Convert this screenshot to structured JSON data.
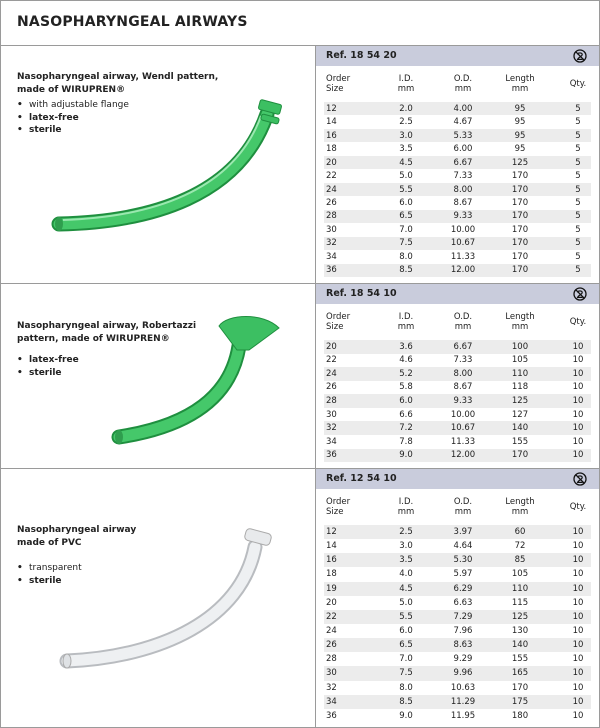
{
  "title": "NASOPHARYNGEAL AIRWAYS",
  "sections": [
    {
      "description": [
        "Nasopharyngeal airway, Wendl pattern,",
        "made of WIRUPREN®"
      ],
      "features": [
        {
          "text": "with adjustable flange",
          "bold": false
        },
        {
          "text": "latex-free",
          "bold": true
        },
        {
          "text": "sterile",
          "bold": true
        }
      ],
      "ref": "Ref. 18 54 20",
      "columns": [
        [
          "Order",
          "Size"
        ],
        [
          "I.D.",
          "mm"
        ],
        [
          "O.D.",
          "mm"
        ],
        [
          "Length",
          "mm"
        ],
        [
          "Qty."
        ]
      ],
      "rows": [
        [
          "12",
          "2.0",
          "4.00",
          "95",
          "5"
        ],
        [
          "14",
          "2.5",
          "4.67",
          "95",
          "5"
        ],
        [
          "16",
          "3.0",
          "5.33",
          "95",
          "5"
        ],
        [
          "18",
          "3.5",
          "6.00",
          "95",
          "5"
        ],
        [
          "20",
          "4.5",
          "6.67",
          "125",
          "5"
        ],
        [
          "22",
          "5.0",
          "7.33",
          "170",
          "5"
        ],
        [
          "24",
          "5.5",
          "8.00",
          "170",
          "5"
        ],
        [
          "26",
          "6.0",
          "8.67",
          "170",
          "5"
        ],
        [
          "28",
          "6.5",
          "9.33",
          "170",
          "5"
        ],
        [
          "30",
          "7.0",
          "10.00",
          "170",
          "5"
        ],
        [
          "32",
          "7.5",
          "10.67",
          "170",
          "5"
        ],
        [
          "34",
          "8.0",
          "11.33",
          "170",
          "5"
        ],
        [
          "36",
          "8.5",
          "12.00",
          "170",
          "5"
        ]
      ]
    },
    {
      "description": [
        "Nasopharyngeal airway, Robertazzi",
        "pattern, made of WIRUPREN®"
      ],
      "features": [
        {
          "text": "latex-free",
          "bold": true
        },
        {
          "text": "sterile",
          "bold": true
        }
      ],
      "ref": "Ref. 18 54 10",
      "columns": [
        [
          "Order",
          "Size"
        ],
        [
          "I.D.",
          "mm"
        ],
        [
          "O.D.",
          "mm"
        ],
        [
          "Length",
          "mm"
        ],
        [
          "Qty."
        ]
      ],
      "rows": [
        [
          "20",
          "3.6",
          "6.67",
          "100",
          "10"
        ],
        [
          "22",
          "4.6",
          "7.33",
          "105",
          "10"
        ],
        [
          "24",
          "5.2",
          "8.00",
          "110",
          "10"
        ],
        [
          "26",
          "5.8",
          "8.67",
          "118",
          "10"
        ],
        [
          "28",
          "6.0",
          "9.33",
          "125",
          "10"
        ],
        [
          "30",
          "6.6",
          "10.00",
          "127",
          "10"
        ],
        [
          "32",
          "7.2",
          "10.67",
          "140",
          "10"
        ],
        [
          "34",
          "7.8",
          "11.33",
          "155",
          "10"
        ],
        [
          "36",
          "9.0",
          "12.00",
          "170",
          "10"
        ]
      ]
    },
    {
      "description": [
        "Nasopharyngeal airway",
        "made of PVC"
      ],
      "features": [
        {
          "text": "transparent",
          "bold": false
        },
        {
          "text": "sterile",
          "bold": true
        }
      ],
      "ref": "Ref. 12 54 10",
      "columns": [
        [
          "Order",
          "Size"
        ],
        [
          "I.D.",
          "mm"
        ],
        [
          "O.D.",
          "mm"
        ],
        [
          "Length",
          "mm"
        ],
        [
          "Qty."
        ]
      ],
      "rows": [
        [
          "12",
          "2.5",
          "3.97",
          "60",
          "10"
        ],
        [
          "14",
          "3.0",
          "4.64",
          "72",
          "10"
        ],
        [
          "16",
          "3.5",
          "5.30",
          "85",
          "10"
        ],
        [
          "18",
          "4.0",
          "5.97",
          "105",
          "10"
        ],
        [
          "19",
          "4.5",
          "6.29",
          "110",
          "10"
        ],
        [
          "20",
          "5.0",
          "6.63",
          "115",
          "10"
        ],
        [
          "22",
          "5.5",
          "7.29",
          "125",
          "10"
        ],
        [
          "24",
          "6.0",
          "7.96",
          "130",
          "10"
        ],
        [
          "26",
          "6.5",
          "8.63",
          "140",
          "10"
        ],
        [
          "28",
          "7.0",
          "9.29",
          "155",
          "10"
        ],
        [
          "30",
          "7.5",
          "9.96",
          "165",
          "10"
        ],
        [
          "32",
          "8.0",
          "10.63",
          "170",
          "10"
        ],
        [
          "34",
          "8.5",
          "11.29",
          "175",
          "10"
        ],
        [
          "36",
          "9.0",
          "11.95",
          "180",
          "10"
        ]
      ]
    }
  ]
}
